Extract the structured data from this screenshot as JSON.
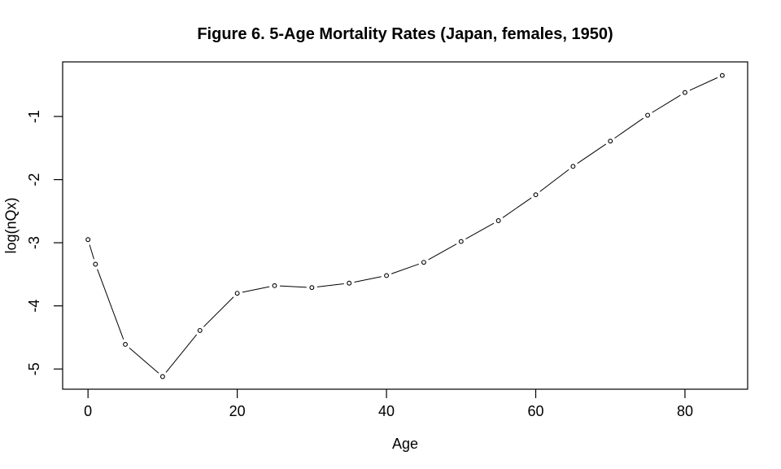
{
  "chart_data": {
    "type": "line",
    "title": "Figure 6. 5-Age Mortality Rates (Japan, females, 1950)",
    "xlabel": "Age",
    "ylabel": "log(nQx)",
    "x": [
      0,
      1,
      5,
      10,
      15,
      20,
      25,
      30,
      35,
      40,
      45,
      50,
      55,
      60,
      65,
      70,
      75,
      80,
      85
    ],
    "y": [
      -2.95,
      -3.34,
      -4.61,
      -5.12,
      -4.39,
      -3.8,
      -3.68,
      -3.71,
      -3.64,
      -3.52,
      -3.31,
      -2.98,
      -2.65,
      -2.24,
      -1.79,
      -1.39,
      -0.98,
      -0.62,
      -0.35
    ],
    "xticks": [
      0,
      20,
      40,
      60,
      80
    ],
    "yticks": [
      -1,
      -2,
      -3,
      -4,
      -5
    ],
    "xlim": [
      -3.4,
      88.4
    ],
    "ylim": [
      -5.32,
      -0.135
    ],
    "grid": false,
    "legend": null,
    "marker": "open-circle",
    "line_style": "segments-with-gaps-at-points",
    "colors": {
      "line": "#000000",
      "text": "#000000",
      "background": "#ffffff"
    }
  }
}
